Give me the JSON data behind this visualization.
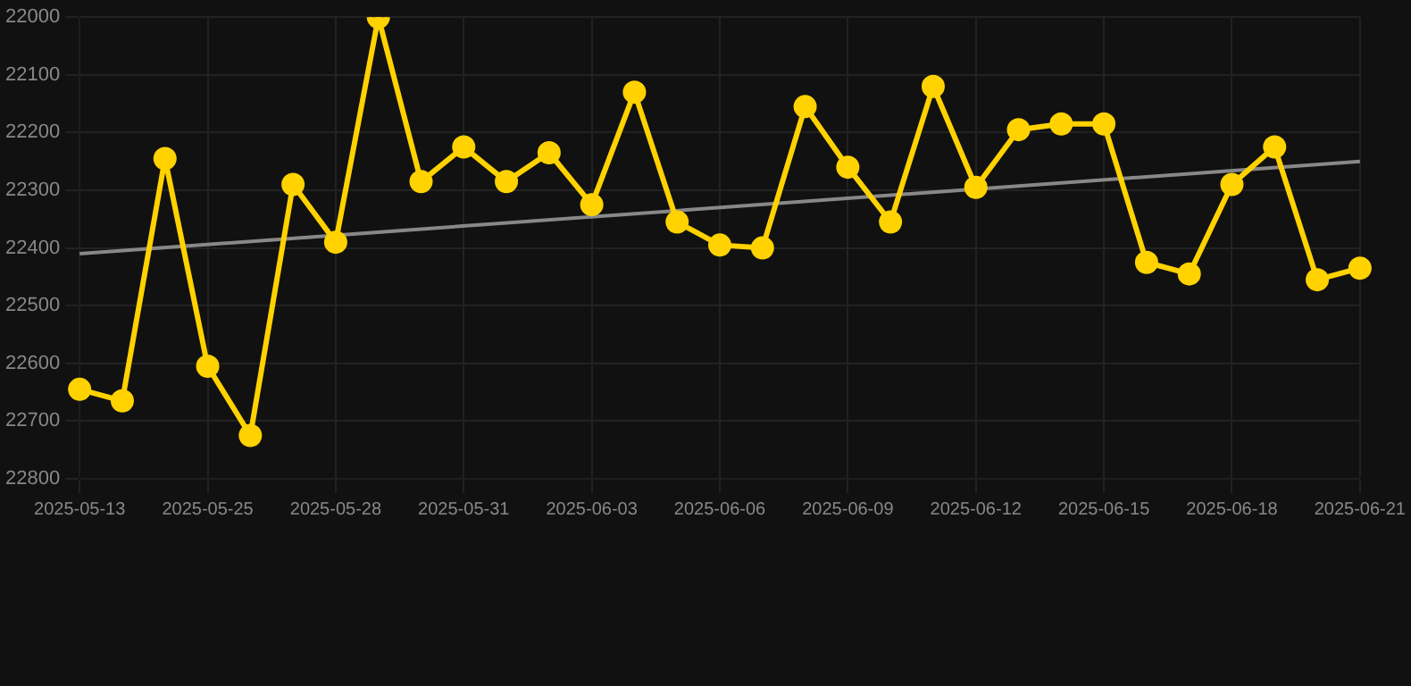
{
  "chart_data": {
    "type": "line",
    "categories": [
      "2025-05-13",
      null,
      null,
      "2025-05-25",
      null,
      null,
      "2025-05-28",
      null,
      null,
      "2025-05-31",
      null,
      null,
      "2025-06-03",
      null,
      null,
      "2025-06-06",
      null,
      null,
      "2025-06-09",
      null,
      null,
      "2025-06-12",
      null,
      null,
      "2025-06-15",
      null,
      null,
      "2025-06-18",
      null,
      null,
      "2025-06-21"
    ],
    "series": [
      {
        "color": "#ffd200",
        "marker": "circle",
        "values": [
          22645,
          22665,
          22245,
          22605,
          22725,
          22290,
          22390,
          22000,
          22285,
          22225,
          22285,
          22235,
          22325,
          22130,
          22355,
          22395,
          22400,
          22155,
          22260,
          22355,
          22120,
          22295,
          22195,
          22185,
          22185,
          22425,
          22445,
          22290,
          22225,
          22455,
          22435
        ]
      },
      {
        "color": "#888888",
        "marker": "none",
        "values": [
          22410,
          null,
          null,
          null,
          null,
          null,
          null,
          null,
          null,
          null,
          null,
          null,
          null,
          null,
          null,
          null,
          null,
          null,
          null,
          null,
          null,
          null,
          null,
          null,
          null,
          null,
          null,
          null,
          null,
          null,
          22250
        ]
      }
    ],
    "ylim": [
      22800,
      22000
    ],
    "yticks": [
      22000,
      22100,
      22200,
      22300,
      22400,
      22500,
      22600,
      22700,
      22800
    ],
    "grid": true,
    "legend": false
  }
}
